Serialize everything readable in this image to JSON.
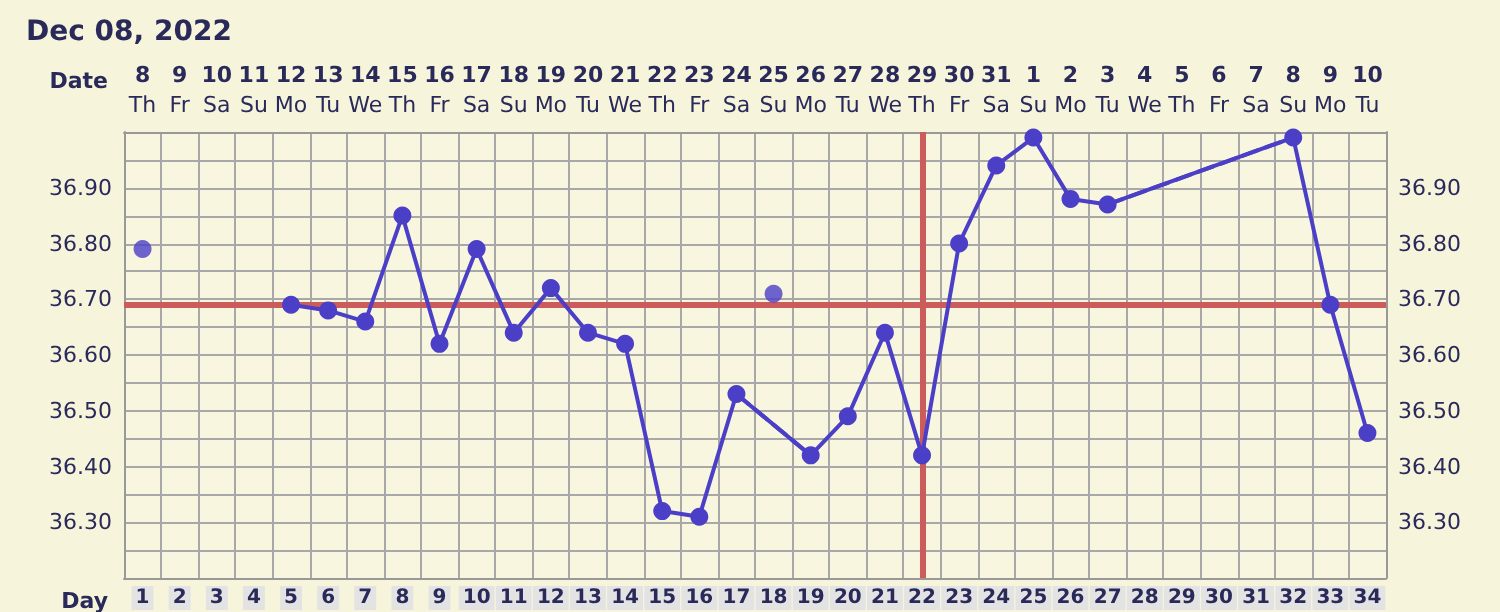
{
  "chart_data": {
    "type": "line",
    "title": "Dec 08, 2022",
    "xlabel": "Day",
    "x2label": "Date",
    "xlim": [
      0.5,
      34.5
    ],
    "xticks": [
      1,
      2,
      3,
      4,
      5,
      6,
      7,
      8,
      9,
      10,
      11,
      12,
      13,
      14,
      15,
      16,
      17,
      18,
      19,
      20,
      21,
      22,
      23,
      24,
      25,
      26,
      27,
      28,
      29,
      30,
      31,
      32,
      33,
      34
    ],
    "x2lim": [
      "2022-12-07T12:00",
      "2023-01-10T12:00"
    ],
    "x2ticks": [
      {
        "value": "2022-12-08",
        "label": "8\nTh"
      },
      {
        "value": "2022-12-09",
        "label": "9\nFr"
      },
      {
        "value": "2022-12-10",
        "label": "10\nSa"
      },
      {
        "value": "2022-12-11",
        "label": "11\nSu"
      },
      {
        "value": "2022-12-12",
        "label": "12\nMo"
      },
      {
        "value": "2022-12-13",
        "label": "13\nTu"
      },
      {
        "value": "2022-12-14",
        "label": "14\nWe"
      },
      {
        "value": "2022-12-15",
        "label": "15\nTh"
      },
      {
        "value": "2022-12-16",
        "label": "16\nFr"
      },
      {
        "value": "2022-12-17",
        "label": "17\nSa"
      },
      {
        "value": "2022-12-18",
        "label": "18\nSu"
      },
      {
        "value": "2022-12-19",
        "label": "19\nMo"
      },
      {
        "value": "2022-12-20",
        "label": "20\nTu"
      },
      {
        "value": "2022-12-21",
        "label": "21\nWe"
      },
      {
        "value": "2022-12-22",
        "label": "22\nTh"
      },
      {
        "value": "2022-12-23",
        "label": "23\nFr"
      },
      {
        "value": "2022-12-24",
        "label": "24\nSa"
      },
      {
        "value": "2022-12-25",
        "label": "25\nSu"
      },
      {
        "value": "2022-12-26",
        "label": "26\nMo"
      },
      {
        "value": "2022-12-27",
        "label": "27\nTu"
      },
      {
        "value": "2022-12-28",
        "label": "28\nWe"
      },
      {
        "value": "2022-12-29",
        "label": "29\nTh"
      },
      {
        "value": "2022-12-30",
        "label": "30\nFr"
      },
      {
        "value": "2022-12-31",
        "label": "31\nSa"
      },
      {
        "value": "2023-01-01",
        "label": "1\nSu"
      },
      {
        "value": "2023-01-02",
        "label": "2\nMo"
      },
      {
        "value": "2023-01-03",
        "label": "3\nTu"
      },
      {
        "value": "2023-01-04",
        "label": "4\nWe"
      },
      {
        "value": "2023-01-05",
        "label": "5\nTh"
      },
      {
        "value": "2023-01-06",
        "label": "6\nFr"
      },
      {
        "value": "2023-01-07",
        "label": "7\nSa"
      },
      {
        "value": "2023-01-08",
        "label": "8\nSu"
      },
      {
        "value": "2023-01-09",
        "label": "9\nMo"
      },
      {
        "value": "2023-01-10",
        "label": "10\nTu"
      }
    ],
    "ylim": [
      36.2,
      37.0
    ],
    "yticks": [
      {
        "value": 36.25,
        "label": null
      },
      {
        "value": 36.3,
        "label": "36.30"
      },
      {
        "value": 36.35,
        "label": null
      },
      {
        "value": 36.4,
        "label": "36.40"
      },
      {
        "value": 36.45,
        "label": null
      },
      {
        "value": 36.5,
        "label": "36.50"
      },
      {
        "value": 36.55,
        "label": null
      },
      {
        "value": 36.6,
        "label": "36.60"
      },
      {
        "value": 36.65,
        "label": null
      },
      {
        "value": 36.7,
        "label": "36.70"
      },
      {
        "value": 36.75,
        "label": null
      },
      {
        "value": 36.8,
        "label": "36.80"
      },
      {
        "value": 36.85,
        "label": null
      },
      {
        "value": 36.9,
        "label": "36.90"
      },
      {
        "value": 36.95,
        "label": null
      }
    ],
    "y2lim": [
      36.2,
      37.0
    ],
    "y2ticks": [
      {
        "value": 36.3,
        "label": "36.30"
      },
      {
        "value": 36.4,
        "label": "36.40"
      },
      {
        "value": 36.5,
        "label": "36.50"
      },
      {
        "value": 36.6,
        "label": "36.60"
      },
      {
        "value": 36.7,
        "label": "36.70"
      },
      {
        "value": 36.8,
        "label": "36.80"
      },
      {
        "value": 36.9,
        "label": "36.90"
      }
    ],
    "grid": true,
    "series": [
      {
        "color": "#4b3fc8",
        "marker": "circle",
        "line_style": "solid",
        "x": [
          5,
          6,
          7,
          8,
          9,
          10,
          11,
          12,
          13,
          14,
          15,
          16,
          17,
          19,
          20,
          21,
          22,
          23,
          24,
          25,
          26,
          27,
          32,
          33,
          34
        ],
        "values": [
          36.69,
          36.68,
          36.66,
          36.85,
          36.62,
          36.79,
          36.64,
          36.72,
          36.64,
          36.62,
          36.32,
          36.31,
          36.53,
          36.42,
          36.49,
          36.64,
          36.42,
          36.8,
          36.94,
          36.99,
          36.88,
          36.87,
          36.99,
          36.69,
          36.46
        ]
      },
      {
        "color": "#4b3fc8",
        "marker": "none",
        "line_style": "dashed",
        "x": [
          17,
          19
        ],
        "values": [
          36.53,
          36.42
        ]
      },
      {
        "color": "#4b3fc8",
        "marker": "none",
        "line_style": "dashed",
        "x": [
          27,
          32
        ],
        "values": [
          36.87,
          36.99
        ]
      },
      {
        "type": "scatter",
        "color": "#4b3fc8",
        "marker": "circle",
        "x": [
          1,
          18
        ],
        "values": [
          36.79,
          36.71
        ]
      }
    ],
    "ref_lines": [
      {
        "axis": "y",
        "value": 36.69,
        "color": "#cc5b5b"
      },
      {
        "axis": "x",
        "value": 22,
        "color": "#cc5b5b"
      }
    ]
  }
}
